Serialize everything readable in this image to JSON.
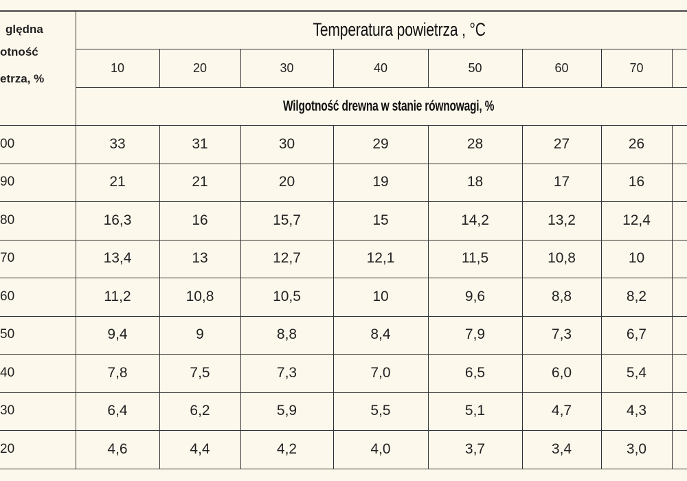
{
  "table": {
    "corner_header_lines": [
      "ględna",
      "otność",
      "etrza, %"
    ],
    "title": "Temperatura powietrza , °C",
    "temperatures": [
      "10",
      "20",
      "30",
      "40",
      "50",
      "60",
      "70"
    ],
    "subtitle": "Wilgotność drewna w stanie równowagi, %",
    "rows": [
      {
        "rh": "00",
        "values": [
          "33",
          "31",
          "30",
          "29",
          "28",
          "27",
          "26"
        ]
      },
      {
        "rh": "90",
        "values": [
          "21",
          "21",
          "20",
          "19",
          "18",
          "17",
          "16"
        ]
      },
      {
        "rh": "80",
        "values": [
          "16,3",
          "16",
          "15,7",
          "15",
          "14,2",
          "13,2",
          "12,4"
        ]
      },
      {
        "rh": "70",
        "values": [
          "13,4",
          "13",
          "12,7",
          "12,1",
          "11,5",
          "10,8",
          "10"
        ]
      },
      {
        "rh": "60",
        "values": [
          "11,2",
          "10,8",
          "10,5",
          "10",
          "9,6",
          "8,8",
          "8,2"
        ]
      },
      {
        "rh": "50",
        "values": [
          "9,4",
          "9",
          "8,8",
          "8,4",
          "7,9",
          "7,3",
          "6,7"
        ]
      },
      {
        "rh": "40",
        "values": [
          "7,8",
          "7,5",
          "7,3",
          "7,0",
          "6,5",
          "6,0",
          "5,4"
        ]
      },
      {
        "rh": "30",
        "values": [
          "6,4",
          "6,2",
          "5,9",
          "5,5",
          "5,1",
          "4,7",
          "4,3"
        ]
      },
      {
        "rh": "20",
        "values": [
          "4,6",
          "4,4",
          "4,2",
          "4,0",
          "3,7",
          "3,4",
          "3,0"
        ]
      }
    ]
  }
}
